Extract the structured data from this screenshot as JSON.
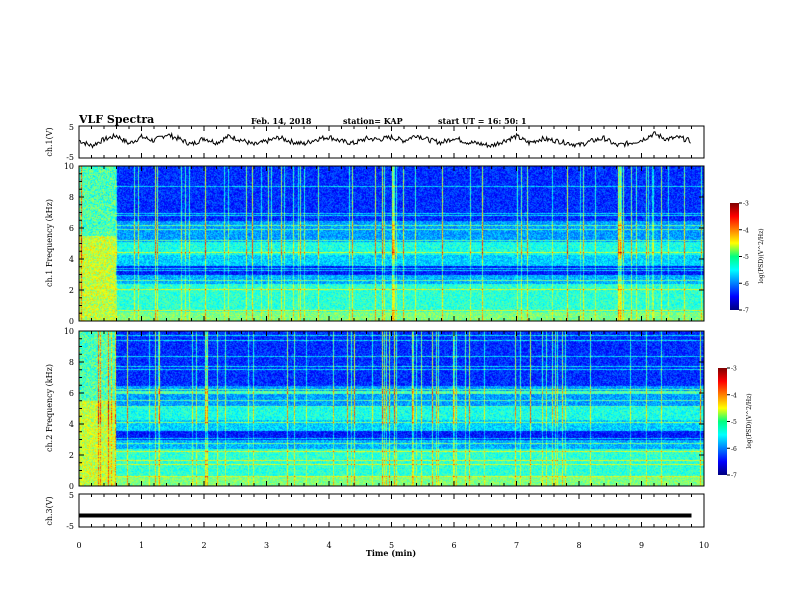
{
  "header": {
    "title": "VLF Spectra",
    "date": "Feb. 14, 2018",
    "station": "station= KAP",
    "start": "start  UT =   16: 50: 1"
  },
  "chart_data": [
    {
      "type": "line",
      "panel": "ch1-waveform",
      "ylabel": "ch.1(V)",
      "ylim": [
        -5,
        5
      ],
      "yticks": [
        "5",
        "-5"
      ],
      "series": [
        {
          "x": [
            0,
            0.2,
            0.4,
            0.6,
            0.8,
            1.0,
            1.2,
            1.4,
            1.6,
            1.8,
            2.0,
            2.2,
            2.4,
            2.6,
            2.8,
            3.0,
            3.2,
            3.4,
            3.6,
            3.8,
            4.0,
            4.2,
            4.4,
            4.6,
            4.8,
            5.0,
            5.2,
            5.4,
            5.6,
            5.8,
            6.0,
            6.2,
            6.4,
            6.6,
            6.8,
            7.0,
            7.2,
            7.4,
            7.6,
            7.8,
            8.0,
            8.2,
            8.4,
            8.6,
            8.8,
            9.0,
            9.2,
            9.4,
            9.6,
            9.8
          ],
          "y": [
            0.5,
            -1.2,
            0.8,
            2.0,
            -0.5,
            1.6,
            0.4,
            2.4,
            1.0,
            -0.8,
            1.2,
            -0.2,
            1.8,
            0.6,
            -0.9,
            0.2,
            1.4,
            0.1,
            -0.6,
            0.9,
            1.6,
            0.2,
            -0.4,
            1.1,
            0.8,
            1.5,
            0.4,
            2.2,
            0.6,
            -0.2,
            1.3,
            0.0,
            -0.5,
            -1.2,
            0.4,
            1.8,
            -0.3,
            1.0,
            0.5,
            -0.2,
            -1.0,
            0.3,
            1.2,
            -1.1,
            -0.4,
            0.6,
            2.6,
            0.9,
            1.4,
            0.2
          ]
        }
      ]
    },
    {
      "type": "heatmap",
      "panel": "ch1-spectrogram",
      "ylabel": "ch.1 Frequency (kHz)",
      "xlim": [
        0,
        10
      ],
      "ylim": [
        0,
        10
      ],
      "yticks": [
        0,
        2,
        4,
        6,
        8,
        10
      ],
      "colorbar": {
        "label": "log(PSD)(V^2/Hz)",
        "range": [
          -7,
          -3
        ],
        "ticks": [
          "-3",
          "-4",
          "-5",
          "-6",
          "-7"
        ]
      },
      "transition_time_min": 0.58
    },
    {
      "type": "heatmap",
      "panel": "ch2-spectrogram",
      "ylabel": "ch.2 Frequency (kHz)",
      "xlim": [
        0,
        10
      ],
      "ylim": [
        0,
        10
      ],
      "yticks": [
        0,
        2,
        4,
        6,
        8,
        10
      ],
      "colorbar": {
        "label": "log(PSD)(V^2/Hz)",
        "range": [
          -7,
          -3
        ],
        "ticks": [
          "-3",
          "-4",
          "-5",
          "-6",
          "-7"
        ]
      },
      "transition_time_min": 0.58
    },
    {
      "type": "line",
      "panel": "ch3-waveform",
      "ylabel": "ch.3(V)",
      "ylim": [
        -5,
        5
      ],
      "yticks": [
        "5",
        "-5"
      ],
      "series": [
        {
          "x": [
            0,
            9.8
          ],
          "y": [
            -1.5,
            -1.5
          ]
        }
      ]
    }
  ],
  "xaxis": {
    "label": "Time  (min)",
    "ticks": [
      "0",
      "1",
      "2",
      "3",
      "4",
      "5",
      "6",
      "7",
      "8",
      "9",
      "10"
    ],
    "range": [
      0,
      10
    ]
  },
  "colors": {
    "jet_low": "#00007f",
    "jet_mid": "#00ff80",
    "jet_high": "#7f0000",
    "trace": "#000000"
  }
}
